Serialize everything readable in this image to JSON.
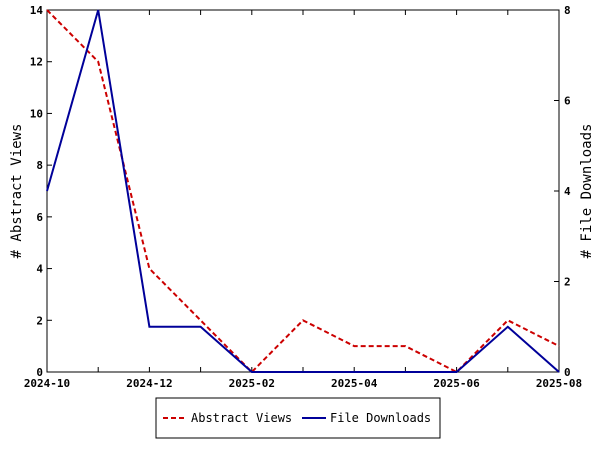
{
  "chart_data": {
    "type": "line",
    "x": [
      "2024-10",
      "2024-11",
      "2024-12",
      "2025-01",
      "2025-02",
      "2025-03",
      "2025-04",
      "2025-05",
      "2025-06",
      "2025-07",
      "2025-08"
    ],
    "x_tick_labels": [
      "2024-10",
      "2024-12",
      "2025-02",
      "2025-04",
      "2025-06",
      "2025-08"
    ],
    "series": [
      {
        "name": "Abstract Views",
        "axis": "left",
        "values": [
          14,
          12,
          4,
          2,
          0,
          2,
          1,
          1,
          0,
          2,
          1
        ],
        "color": "#cc0000",
        "style": "dashed"
      },
      {
        "name": "File Downloads",
        "axis": "right",
        "values": [
          4,
          8,
          1,
          1,
          0,
          0,
          0,
          0,
          0,
          1,
          0
        ],
        "color": "#000099",
        "style": "solid"
      }
    ],
    "ylabel_left": "# Abstract Views",
    "ylabel_right": "# File Downloads",
    "ylim_left": [
      0,
      14
    ],
    "ylim_right": [
      0,
      8
    ],
    "yticks_left": [
      0,
      2,
      4,
      6,
      8,
      10,
      12,
      14
    ],
    "yticks_right": [
      0,
      2,
      4,
      6,
      8
    ],
    "grid": false,
    "legend_position": "bottom"
  }
}
